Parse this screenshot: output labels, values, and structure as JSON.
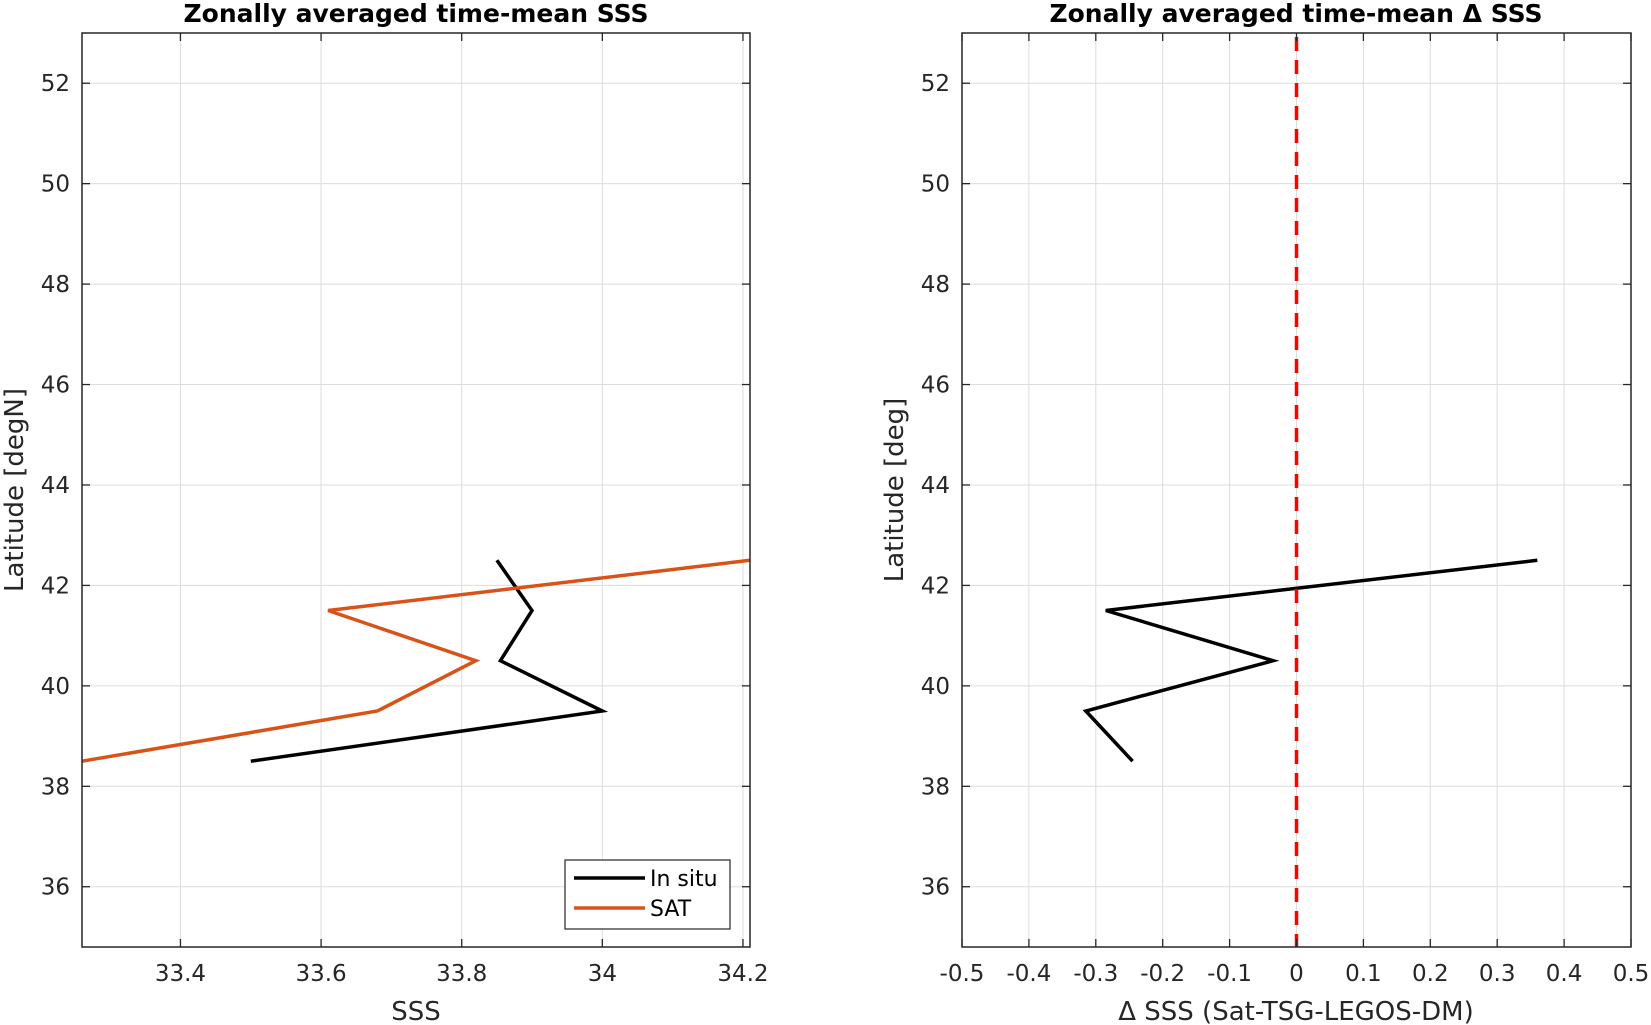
{
  "chart_data": [
    {
      "type": "line",
      "title": "Zonally averaged time-mean SSS",
      "xlabel": "SSS",
      "ylabel": "Latitude [degN]",
      "xlim": [
        33.26,
        34.21
      ],
      "ylim": [
        34.8,
        53
      ],
      "xticks": [
        33.4,
        33.6,
        33.8,
        34,
        34.2
      ],
      "xtick_labels": [
        "33.4",
        "33.6",
        "33.8",
        "34",
        "34.2"
      ],
      "yticks": [
        36,
        38,
        40,
        42,
        44,
        46,
        48,
        50,
        52
      ],
      "ytick_labels": [
        "36",
        "38",
        "40",
        "42",
        "44",
        "46",
        "48",
        "50",
        "52"
      ],
      "grid": true,
      "legend": {
        "placement": "bottom-right",
        "entries": [
          "In situ",
          "SAT"
        ]
      },
      "series": [
        {
          "name": "In situ",
          "color": "#000000",
          "x": [
            33.5,
            34.0,
            33.855,
            33.9,
            33.85
          ],
          "y": [
            38.5,
            39.5,
            40.5,
            41.5,
            42.5
          ]
        },
        {
          "name": "SAT",
          "color": "#d95319",
          "x": [
            33.26,
            33.68,
            33.82,
            33.61,
            34.21
          ],
          "y": [
            38.5,
            39.5,
            40.5,
            41.5,
            42.5
          ]
        }
      ]
    },
    {
      "type": "line",
      "title": "Zonally averaged time-mean Δ SSS",
      "xlabel": "Δ SSS (Sat-TSG-LEGOS-DM)",
      "ylabel": "Latitude [deg]",
      "xlim": [
        -0.5,
        0.5
      ],
      "ylim": [
        34.8,
        53
      ],
      "xticks": [
        -0.5,
        -0.4,
        -0.3,
        -0.2,
        -0.1,
        0,
        0.1,
        0.2,
        0.3,
        0.4,
        0.5
      ],
      "xtick_labels": [
        "-0.5",
        "-0.4",
        "-0.3",
        "-0.2",
        "-0.1",
        "0",
        "0.1",
        "0.2",
        "0.3",
        "0.4",
        "0.5"
      ],
      "yticks": [
        36,
        38,
        40,
        42,
        44,
        46,
        48,
        50,
        52
      ],
      "ytick_labels": [
        "36",
        "38",
        "40",
        "42",
        "44",
        "46",
        "48",
        "50",
        "52"
      ],
      "grid": true,
      "reference_line": {
        "x": 0,
        "color": "#ff0000",
        "style": "dashed"
      },
      "series": [
        {
          "color": "#000000",
          "x": [
            -0.245,
            -0.315,
            -0.035,
            -0.285,
            0.36
          ],
          "y": [
            38.5,
            39.5,
            40.5,
            41.5,
            42.5
          ]
        }
      ]
    }
  ]
}
